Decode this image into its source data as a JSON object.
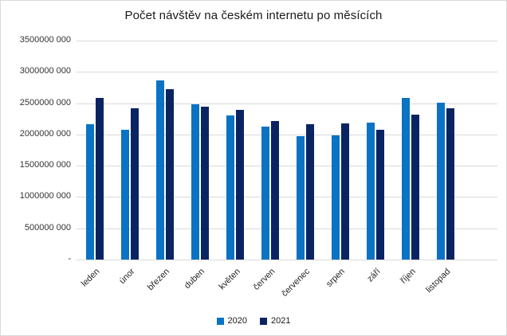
{
  "title": "Počet návštěv na českém internetu po měsících",
  "chart_data": {
    "type": "bar",
    "title": "Počet návštěv na českém internetu po měsících",
    "xlabel": "",
    "ylabel": "",
    "categories": [
      "leden",
      "únor",
      "březen",
      "duben",
      "květen",
      "červen",
      "červenec",
      "srpen",
      "září",
      "říjen",
      "listopad"
    ],
    "series": [
      {
        "name": "2020",
        "color": "#0a73c4",
        "values": [
          2170000000,
          2080000000,
          2860000000,
          2480000000,
          2310000000,
          2120000000,
          1970000000,
          1990000000,
          2190000000,
          2580000000,
          2510000000
        ]
      },
      {
        "name": "2021",
        "color": "#0a2463",
        "values": [
          2590000000,
          2420000000,
          2730000000,
          2450000000,
          2390000000,
          2220000000,
          2170000000,
          2180000000,
          2080000000,
          2320000000,
          2420000000
        ]
      }
    ],
    "ylim": [
      0,
      3500000000
    ],
    "ytick_values": [
      3500000000,
      3000000000,
      2500000000,
      2000000000,
      1500000000,
      1000000000,
      500000000,
      0
    ],
    "ytick_labels": [
      "3500000 000",
      "3000000 000",
      "2500000 000",
      "2000000 000",
      "1500000 000",
      "1000000 000",
      "500000 000",
      "-"
    ],
    "grid": true,
    "legend_position": "bottom"
  },
  "legend": {
    "items": [
      {
        "label": "2020",
        "color": "#0a73c4"
      },
      {
        "label": "2021",
        "color": "#0a2463"
      }
    ]
  },
  "colors": {
    "grid": "#d9d9d9",
    "border": "#d9d9d9",
    "series_2020": "#0a73c4",
    "series_2021": "#0a2463"
  }
}
